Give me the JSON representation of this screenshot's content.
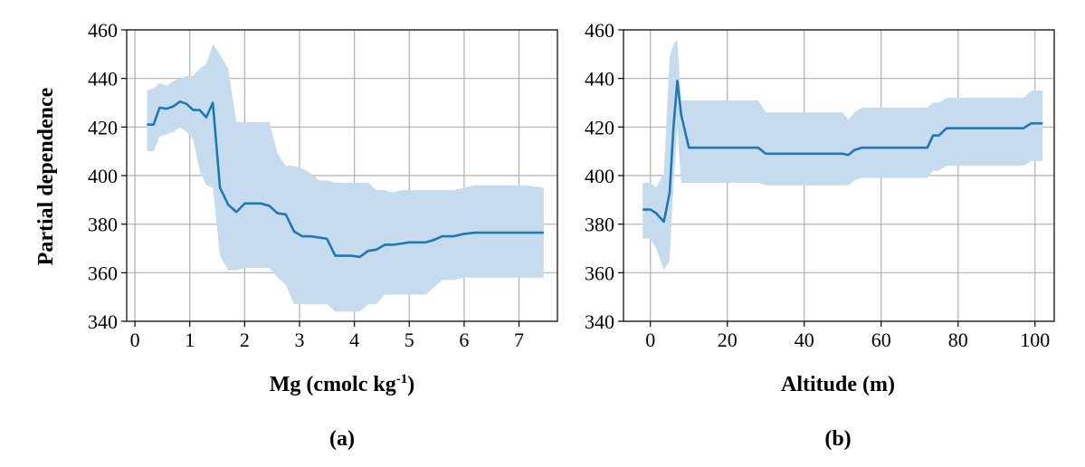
{
  "figure": {
    "ylabel": "Partial dependence",
    "panels": [
      {
        "label": "(a)",
        "xlabel": "Mg (cmolc kg",
        "xlabel_sup": "-1",
        "xlabel_tail": ")"
      },
      {
        "label": "(b)",
        "xlabel": "Altitude (m)",
        "xlabel_sup": "",
        "xlabel_tail": ""
      }
    ]
  },
  "chart_data": [
    {
      "type": "line",
      "title": "",
      "panel_label": "(a)",
      "xlabel": "Mg (cmolc kg-1)",
      "ylabel": "Partial dependence",
      "xlim": [
        -0.15,
        7.7
      ],
      "ylim": [
        340,
        460
      ],
      "xticks": [
        0,
        1,
        2,
        3,
        4,
        5,
        6,
        7
      ],
      "yticks": [
        340,
        360,
        380,
        400,
        420,
        440,
        460
      ],
      "grid": true,
      "color": "#1f77b4",
      "band_color": "#c6dcee",
      "series": [
        {
          "name": "mean",
          "x": [
            0.22,
            0.34,
            0.45,
            0.58,
            0.7,
            0.82,
            0.94,
            1.06,
            1.18,
            1.3,
            1.42,
            1.55,
            1.7,
            1.85,
            2.0,
            2.15,
            2.3,
            2.45,
            2.6,
            2.75,
            2.9,
            3.05,
            3.2,
            3.35,
            3.5,
            3.65,
            3.8,
            3.95,
            4.1,
            4.25,
            4.4,
            4.55,
            4.7,
            4.85,
            5.0,
            5.15,
            5.3,
            5.45,
            5.6,
            5.8,
            6.0,
            6.2,
            6.5,
            6.8,
            7.1,
            7.45
          ],
          "values": [
            421,
            421,
            428,
            427.5,
            428.5,
            430.5,
            429.5,
            427,
            427,
            424,
            430,
            395,
            388,
            385,
            388.5,
            388.5,
            388.5,
            387.5,
            384.5,
            384,
            377,
            375,
            375,
            374.5,
            374,
            367,
            367,
            367,
            366.5,
            369,
            369.5,
            371.5,
            371.5,
            372,
            372.5,
            372.5,
            372.5,
            373.5,
            375,
            375,
            376,
            376.5,
            376.5,
            376.5,
            376.5,
            376.5
          ]
        },
        {
          "name": "upper",
          "x": [
            0.22,
            0.34,
            0.45,
            0.58,
            0.7,
            0.82,
            0.94,
            1.06,
            1.18,
            1.3,
            1.42,
            1.55,
            1.7,
            1.85,
            2.0,
            2.15,
            2.3,
            2.45,
            2.6,
            2.75,
            2.9,
            3.05,
            3.2,
            3.35,
            3.5,
            3.65,
            3.8,
            3.95,
            4.1,
            4.25,
            4.4,
            4.55,
            4.7,
            4.85,
            5.0,
            5.15,
            5.3,
            5.45,
            5.6,
            5.8,
            6.0,
            6.2,
            6.5,
            6.8,
            7.1,
            7.45
          ],
          "values": [
            435,
            436,
            438,
            437,
            439,
            440,
            441,
            441,
            444,
            446,
            454,
            450,
            444,
            422,
            422,
            422,
            422,
            422,
            409,
            404,
            404,
            403,
            401,
            398,
            398,
            397,
            397,
            397,
            397,
            397,
            394,
            394,
            393,
            394,
            394,
            394,
            394,
            394,
            394,
            394,
            395,
            396,
            396,
            396,
            396,
            395
          ]
        },
        {
          "name": "lower",
          "x": [
            0.22,
            0.34,
            0.45,
            0.58,
            0.7,
            0.82,
            0.94,
            1.06,
            1.18,
            1.3,
            1.42,
            1.55,
            1.7,
            1.85,
            2.0,
            2.15,
            2.3,
            2.45,
            2.6,
            2.75,
            2.9,
            3.05,
            3.2,
            3.35,
            3.5,
            3.65,
            3.8,
            3.95,
            4.1,
            4.25,
            4.4,
            4.55,
            4.7,
            4.85,
            5.0,
            5.15,
            5.3,
            5.45,
            5.6,
            5.8,
            6.0,
            6.2,
            6.5,
            6.8,
            7.1,
            7.45
          ],
          "values": [
            410,
            410,
            416,
            417,
            418,
            420,
            418,
            415,
            402,
            396,
            395,
            367,
            361,
            361,
            362,
            362,
            362,
            362,
            358,
            355,
            347,
            347,
            347,
            347,
            347,
            344,
            344,
            344,
            344,
            347,
            347,
            351,
            351,
            351,
            351,
            351,
            351,
            354,
            357,
            357,
            358,
            358,
            358,
            358,
            358,
            358
          ]
        }
      ]
    },
    {
      "type": "line",
      "title": "",
      "panel_label": "(b)",
      "xlabel": "Altitude (m)",
      "ylabel": "",
      "xlim": [
        -7,
        105
      ],
      "ylim": [
        340,
        460
      ],
      "xticks": [
        0,
        20,
        40,
        60,
        80,
        100
      ],
      "yticks": [
        340,
        360,
        380,
        400,
        420,
        440,
        460
      ],
      "grid": true,
      "color": "#1f77b4",
      "band_color": "#c6dcee",
      "series": [
        {
          "name": "mean",
          "x": [
            -2,
            0,
            1.5,
            3.5,
            5,
            6,
            7,
            8,
            10,
            20,
            28,
            30,
            35,
            45,
            50,
            51.5,
            53,
            55,
            60,
            65,
            72,
            73.5,
            75,
            77,
            80,
            90,
            97,
            99,
            102
          ],
          "values": [
            386,
            386,
            384.5,
            381,
            393,
            420,
            439,
            425,
            411.5,
            411.5,
            411.5,
            409,
            409,
            409,
            409,
            408.5,
            410.5,
            411.5,
            411.5,
            411.5,
            411.5,
            416.5,
            416.5,
            419.5,
            419.5,
            419.5,
            419.5,
            421.5,
            421.5
          ]
        },
        {
          "name": "upper",
          "x": [
            -2,
            0,
            1.5,
            3.5,
            5,
            6,
            7,
            8,
            10,
            20,
            28,
            30,
            35,
            45,
            50,
            51.5,
            53,
            55,
            60,
            65,
            72,
            73.5,
            75,
            77,
            80,
            90,
            97,
            99,
            102
          ],
          "values": [
            397,
            397,
            395,
            401,
            449,
            454,
            456,
            431,
            431,
            431,
            431,
            426,
            426,
            426,
            426,
            423,
            426,
            428,
            428,
            428,
            428,
            430,
            430,
            432,
            432,
            432,
            432,
            435,
            435
          ]
        },
        {
          "name": "lower",
          "x": [
            -2,
            0,
            1.5,
            3.5,
            5,
            6,
            7,
            8,
            10,
            20,
            28,
            30,
            35,
            45,
            50,
            51.5,
            53,
            55,
            60,
            65,
            72,
            73.5,
            75,
            77,
            80,
            90,
            97,
            99,
            102
          ],
          "values": [
            374,
            374,
            370,
            361,
            365,
            396,
            420,
            397,
            397,
            397,
            397,
            396,
            396,
            396,
            396,
            396,
            398,
            399,
            399,
            399,
            399,
            402,
            402,
            404,
            404,
            404,
            404,
            406,
            406
          ]
        }
      ]
    }
  ]
}
